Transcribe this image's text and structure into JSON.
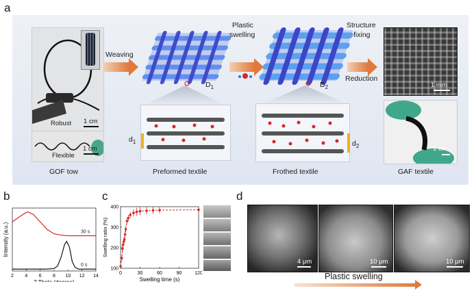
{
  "panel_a": {
    "letter": "a",
    "labels": {
      "gof_tow": "GOF tow",
      "preformed": "Preformed textile",
      "frothed": "Frothed textile",
      "gaf": "GAF textile",
      "robust": "Robust",
      "flexible": "Flexible",
      "weaving": "Weaving",
      "plastic_swelling": "Plastic swelling",
      "plastic": "Plastic",
      "swelling": "swelling",
      "structure_fixing_1": "Structure",
      "structure_fixing_2": "fixing",
      "reduction": "Reduction",
      "d1_upper": "D",
      "d1_sub": "1",
      "d2_upper": "D",
      "d2_sub": "2",
      "dl1": "d",
      "dl1_sub": "1",
      "dl2": "d",
      "dl2_sub": "2",
      "scale_1cm_a": "1 cm",
      "scale_1cm_b": "1 cm",
      "scale_1mm": "1 mm",
      "scale_1cm_c": "1 cm"
    }
  },
  "panel_b": {
    "letter": "b",
    "chart_data": {
      "type": "line",
      "xlabel": "2 Theta (degree)",
      "ylabel": "Intensity (a.u.)",
      "xlim": [
        2,
        14
      ],
      "x_ticks": [
        2,
        4,
        6,
        8,
        10,
        12,
        14
      ],
      "series": [
        {
          "name": "30 s",
          "color": "#d62728",
          "peak_x": 4.2,
          "x": [
            2,
            3,
            4,
            4.2,
            5,
            6,
            7,
            8,
            9,
            10,
            11,
            12,
            13,
            14
          ],
          "y": [
            0.78,
            0.86,
            0.93,
            0.94,
            0.9,
            0.78,
            0.66,
            0.59,
            0.57,
            0.56,
            0.56,
            0.56,
            0.56,
            0.56
          ]
        },
        {
          "name": "0 s",
          "color": "#111111",
          "peak_x": 9.8,
          "x": [
            2,
            4,
            6,
            7,
            8,
            8.5,
            9,
            9.5,
            9.8,
            10.2,
            10.6,
            11,
            11.5,
            12,
            14
          ],
          "y": [
            0.03,
            0.03,
            0.03,
            0.03,
            0.04,
            0.08,
            0.22,
            0.42,
            0.47,
            0.38,
            0.15,
            0.06,
            0.03,
            0.03,
            0.03
          ]
        }
      ]
    }
  },
  "panel_c": {
    "letter": "c",
    "chart_data": {
      "type": "scatter",
      "xlabel": "Swelling time (s)",
      "ylabel": "Swelling ratio (%)",
      "xlim": [
        0,
        120
      ],
      "ylim": [
        100,
        400
      ],
      "x_ticks": [
        0,
        30,
        60,
        90,
        120
      ],
      "y_ticks": [
        100,
        200,
        300,
        400
      ],
      "series": [
        {
          "name": "",
          "color": "#d62728",
          "x": [
            0,
            2,
            3,
            4,
            5,
            6,
            7,
            8,
            10,
            12,
            15,
            20,
            25,
            30,
            40,
            50,
            60,
            120
          ],
          "y": [
            110,
            150,
            195,
            215,
            230,
            240,
            265,
            290,
            330,
            345,
            360,
            370,
            375,
            378,
            380,
            382,
            383,
            385
          ],
          "err": [
            5,
            15,
            20,
            18,
            18,
            15,
            15,
            15,
            15,
            15,
            15,
            18,
            20,
            20,
            18,
            18,
            15,
            15
          ]
        }
      ]
    }
  },
  "panel_d": {
    "letter": "d",
    "scales": [
      "4 μm",
      "10 μm",
      "10 μm"
    ],
    "arrow_label": "Plastic swelling"
  }
}
